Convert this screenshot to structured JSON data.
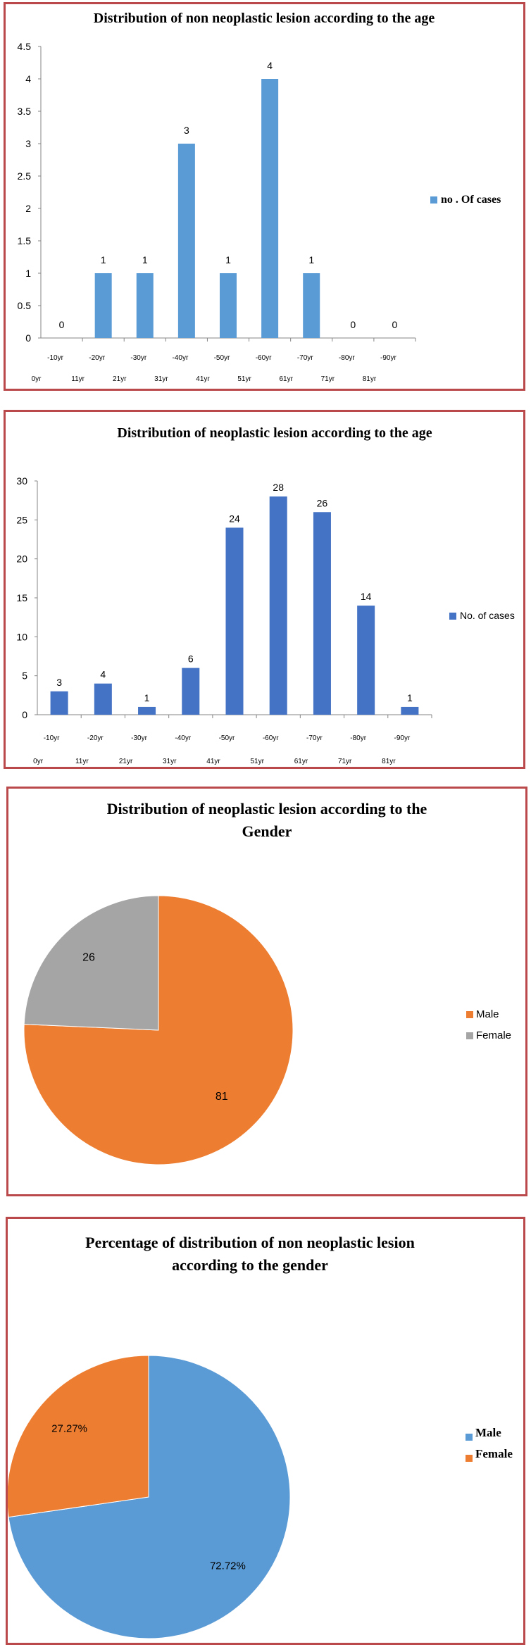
{
  "chart_data": [
    {
      "type": "bar",
      "title": "Distribution of non neoplastic lesion according to the age",
      "categories": [
        "0yr -10yr",
        "11yr -20yr",
        "21yr -30yr",
        "31yr -40yr",
        "41yr -50yr",
        "51yr -60yr",
        "61yr -70yr",
        "71yr -80yr",
        "81yr -90yr"
      ],
      "category_upper": [
        "-10yr",
        "-20yr",
        "-30yr",
        "-40yr",
        "-50yr",
        "-60yr",
        "-70yr",
        "-80yr",
        "-90yr"
      ],
      "category_lower": [
        "0yr",
        "11yr",
        "21yr",
        "31yr",
        "41yr",
        "51yr",
        "61yr",
        "71yr",
        "81yr"
      ],
      "series": [
        {
          "name": "no . Of cases",
          "values": [
            0,
            1,
            1,
            3,
            1,
            4,
            1,
            0,
            0
          ]
        }
      ],
      "ylim": [
        0,
        4.5
      ],
      "yticks": [
        "0",
        "0.5",
        "1",
        "1.5",
        "2",
        "2.5",
        "3",
        "3.5",
        "4",
        "4.5"
      ],
      "color": "#5b9bd5",
      "legend": "right",
      "grid": false
    },
    {
      "type": "bar",
      "title": "Distribution of   neoplastic lesion according to the age",
      "categories": [
        "0yr -10yr",
        "11yr -20yr",
        "21yr -30yr",
        "31yr -40yr",
        "41yr -50yr",
        "51yr -60yr",
        "61yr -70yr",
        "71yr -80yr",
        "81yr -90yr"
      ],
      "category_upper": [
        "-10yr",
        "-20yr",
        "-30yr",
        "-40yr",
        "-50yr",
        "-60yr",
        "-70yr",
        "-80yr",
        "-90yr"
      ],
      "category_lower": [
        "0yr",
        "11yr",
        "21yr",
        "31yr",
        "41yr",
        "51yr",
        "61yr",
        "71yr",
        "81yr"
      ],
      "series": [
        {
          "name": "No. of cases",
          "values": [
            3,
            4,
            1,
            6,
            24,
            28,
            26,
            14,
            1
          ]
        }
      ],
      "ylim": [
        0,
        30
      ],
      "yticks": [
        "0",
        "5",
        "10",
        "15",
        "20",
        "25",
        "30"
      ],
      "color": "#4472c4",
      "legend": "right",
      "grid": false
    },
    {
      "type": "pie",
      "title_lines": [
        "Distribution of neoplastic lesion according to the",
        "Gender"
      ],
      "slices": [
        {
          "name": "Male",
          "value": 81,
          "label": "81",
          "color": "#ed7d31"
        },
        {
          "name": "Female",
          "value": 26,
          "label": "26",
          "color": "#a5a5a5"
        }
      ],
      "legend": "right"
    },
    {
      "type": "pie",
      "title_lines": [
        "Percentage of distribution of non neoplastic lesion",
        "according to the gender"
      ],
      "slices": [
        {
          "name": "Male",
          "value": 72.72,
          "label": "72.72%",
          "color": "#5b9bd5"
        },
        {
          "name": "Female",
          "value": 27.27,
          "label": "27.27%",
          "color": "#ed7d31"
        }
      ],
      "legend": "right"
    }
  ]
}
